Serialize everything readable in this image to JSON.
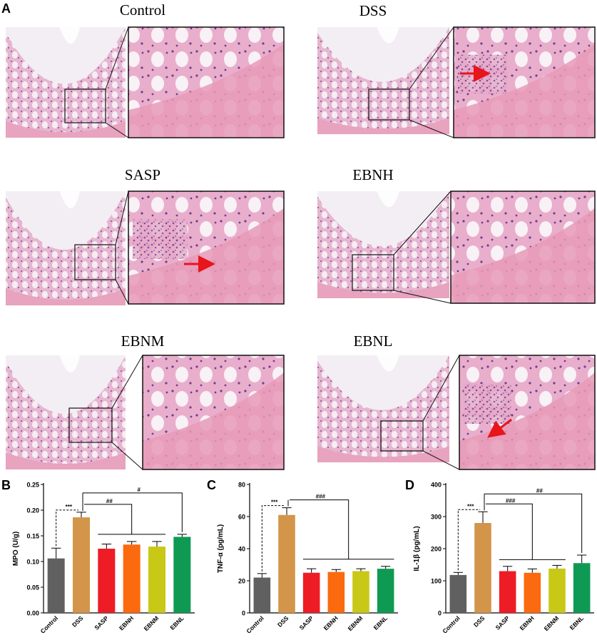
{
  "panel_letters": {
    "a": "A",
    "b": "B",
    "c": "C",
    "d": "D"
  },
  "micrographs": [
    {
      "title": "Control",
      "arrow": false
    },
    {
      "title": "DSS",
      "arrow": true
    },
    {
      "title": "SASP",
      "arrow": true
    },
    {
      "title": "EBNH",
      "arrow": false
    },
    {
      "title": "EBNM",
      "arrow": false
    },
    {
      "title": "EBNL",
      "arrow": true
    }
  ],
  "colors": {
    "tissue_pink": "#e79ab8",
    "tissue_purple": "#8c5aa6",
    "background_light": "#f3eef4",
    "arrow": "#e8151b"
  },
  "chart_data": [
    {
      "type": "bar",
      "title": "",
      "xlabel": "",
      "ylabel": "MPO (U/g)",
      "ylim": [
        0,
        0.25
      ],
      "yticks": [
        "0.00",
        "0.05",
        "0.10",
        "0.15",
        "0.20",
        "0.25"
      ],
      "categories": [
        "Control",
        "DSS",
        "SASP",
        "EBNH",
        "EBNM",
        "EBNL"
      ],
      "values": [
        0.106,
        0.186,
        0.125,
        0.133,
        0.129,
        0.148
      ],
      "errors": [
        0.02,
        0.01,
        0.009,
        0.006,
        0.01,
        0.005
      ],
      "bar_colors": [
        "#606060",
        "#d3954a",
        "#ee1c25",
        "#fb6a0f",
        "#c8c816",
        "#0f9a54"
      ],
      "significance": {
        "vs_control": "***",
        "vs_group": "##",
        "vs_single": "#"
      }
    },
    {
      "type": "bar",
      "title": "",
      "xlabel": "",
      "ylabel": "TNF-α (pg/mL)",
      "ylim": [
        0,
        80
      ],
      "yticks": [
        "0",
        "20",
        "40",
        "60",
        "80"
      ],
      "categories": [
        "Control",
        "DSS",
        "SASP",
        "EBNH",
        "EBNM",
        "EBNL"
      ],
      "values": [
        22,
        61,
        25,
        25.5,
        26,
        27.5
      ],
      "errors": [
        2.5,
        4.5,
        2.5,
        1.5,
        1.5,
        1.5
      ],
      "bar_colors": [
        "#606060",
        "#d3954a",
        "#ee1c25",
        "#fb6a0f",
        "#c8c816",
        "#0f9a54"
      ],
      "significance": {
        "vs_control": "***",
        "vs_group": "###"
      }
    },
    {
      "type": "bar",
      "title": "",
      "xlabel": "",
      "ylabel": "IL-1β (pg/mL)",
      "ylim": [
        0,
        400
      ],
      "yticks": [
        "0",
        "100",
        "200",
        "300",
        "400"
      ],
      "categories": [
        "Control",
        "DSS",
        "SASP",
        "EBNH",
        "EBNM",
        "EBNL"
      ],
      "values": [
        118,
        280,
        130,
        125,
        138,
        155
      ],
      "errors": [
        8,
        35,
        15,
        12,
        10,
        25
      ],
      "bar_colors": [
        "#606060",
        "#d3954a",
        "#ee1c25",
        "#fb6a0f",
        "#c8c816",
        "#0f9a54"
      ],
      "significance": {
        "vs_control": "***",
        "vs_group": "###",
        "vs_single": "##"
      }
    }
  ]
}
